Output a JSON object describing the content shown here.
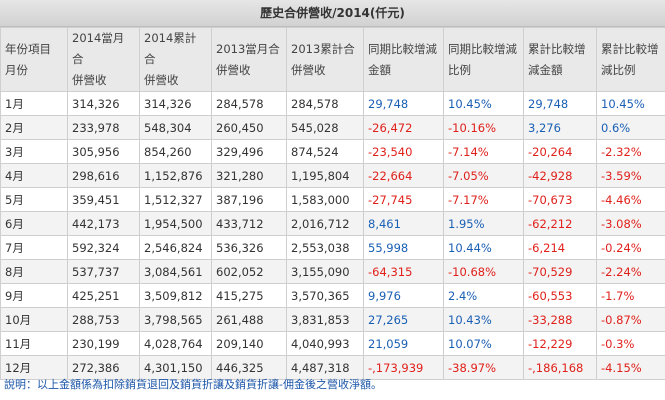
{
  "title": "歷史合併營收/2014(仟元)",
  "headers": [
    [
      "年份項目",
      "月份"
    ],
    [
      "2014當月合",
      "併營收"
    ],
    [
      "2014累計合",
      "併營收"
    ],
    [
      "2013當月合",
      "併營收"
    ],
    [
      "2013累計合",
      "併營收"
    ],
    [
      "同期比較增減",
      "金額"
    ],
    [
      "同期比較增減",
      "比例"
    ],
    [
      "累計比較增",
      "減金額"
    ],
    [
      "累計比較增",
      "減比例"
    ]
  ],
  "rows": [
    [
      "1月",
      "314,326",
      "314,326",
      "284,578",
      "284,578",
      "29,748",
      "10.45%",
      "29,748",
      "10.45%"
    ],
    [
      "2月",
      "233,978",
      "548,304",
      "260,450",
      "545,028",
      "-26,472",
      "-10.16%",
      "3,276",
      "0.6%"
    ],
    [
      "3月",
      "305,956",
      "854,260",
      "329,496",
      "874,524",
      "-23,540",
      "-7.14%",
      "-20,264",
      "-2.32%"
    ],
    [
      "4月",
      "298,616",
      "1,152,876",
      "321,280",
      "1,195,804",
      "-22,664",
      "-7.05%",
      "-42,928",
      "-3.59%"
    ],
    [
      "5月",
      "359,451",
      "1,512,327",
      "387,196",
      "1,583,000",
      "-27,745",
      "-7.17%",
      "-70,673",
      "-4.46%"
    ],
    [
      "6月",
      "442,173",
      "1,954,500",
      "433,712",
      "2,016,712",
      "8,461",
      "1.95%",
      "-62,212",
      "-3.08%"
    ],
    [
      "7月",
      "592,324",
      "2,546,824",
      "536,326",
      "2,553,038",
      "55,998",
      "10.44%",
      "-6,214",
      "-0.24%"
    ],
    [
      "8月",
      "537,737",
      "3,084,561",
      "602,052",
      "3,155,090",
      "-64,315",
      "-10.68%",
      "-70,529",
      "-2.24%"
    ],
    [
      "9月",
      "425,251",
      "3,509,812",
      "415,275",
      "3,570,365",
      "9,976",
      "2.4%",
      "-60,553",
      "-1.7%"
    ],
    [
      "10月",
      "288,753",
      "3,798,565",
      "261,488",
      "3,831,853",
      "27,265",
      "10.43%",
      "-33,288",
      "-0.87%"
    ],
    [
      "11月",
      "230,199",
      "4,028,764",
      "209,140",
      "4,040,993",
      "21,059",
      "10.07%",
      "-12,229",
      "-0.3%"
    ],
    [
      "12月",
      "272,386",
      "4,301,150",
      "446,325",
      "4,487,318",
      "-,173,939",
      "-38.97%",
      "-,186,168",
      "-4.15%"
    ]
  ],
  "note": "說明：以上金額係為扣除銷貨退回及銷貨折讓及銷貨折讓-佣金後之營收淨額。",
  "colors": {
    "positive": "#1a5fb4",
    "negative": "#e0201a"
  }
}
